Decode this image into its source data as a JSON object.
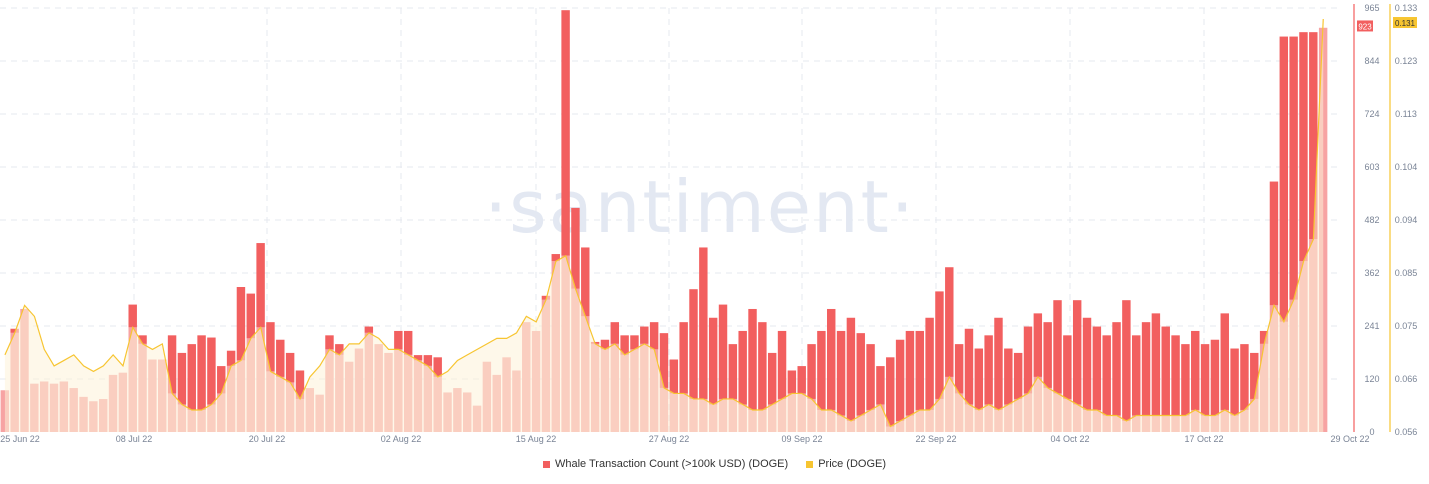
{
  "watermark": "·santiment·",
  "colors": {
    "bars": "#f25f5f",
    "bars_light": "#f7a3a3",
    "price": "#f7c531",
    "price_fill": "#fdf3d8",
    "axis_left": "#f25f5f",
    "axis_right": "#f7c531",
    "grid": "#e6e9ef"
  },
  "legend": [
    {
      "label": "Whale Transaction Count (>100k USD) (DOGE)",
      "color": "#f25f5f"
    },
    {
      "label": "Price (DOGE)",
      "color": "#f7c531"
    }
  ],
  "chart_data": {
    "type": "bar",
    "x_tick_labels": [
      "25 Jun 22",
      "08 Jul 22",
      "20 Jul 22",
      "02 Aug 22",
      "15 Aug 22",
      "27 Aug 22",
      "09 Sep 22",
      "22 Sep 22",
      "04 Oct 22",
      "17 Oct 22",
      "29 Oct 22"
    ],
    "y_left_ticks": [
      "965",
      "844",
      "724",
      "603",
      "482",
      "362",
      "241",
      "120",
      "0"
    ],
    "y_right_ticks": [
      "0.133",
      "0.123",
      "0.113",
      "0.104",
      "0.094",
      "0.085",
      "0.075",
      "0.066",
      "0.056"
    ],
    "y_left_range": [
      0,
      965
    ],
    "y_right_range": [
      0.056,
      0.133
    ],
    "current_labels": {
      "whale": "923",
      "price": "0.131"
    },
    "series": [
      {
        "name": "Whale Transaction Count (>100k USD) (DOGE)",
        "axis": "left",
        "type": "bar",
        "values": [
          95,
          235,
          280,
          110,
          115,
          110,
          115,
          100,
          80,
          70,
          75,
          130,
          135,
          290,
          220,
          165,
          165,
          220,
          180,
          200,
          220,
          215,
          150,
          185,
          330,
          315,
          430,
          250,
          210,
          180,
          140,
          100,
          85,
          220,
          200,
          160,
          190,
          240,
          200,
          180,
          230,
          230,
          175,
          175,
          170,
          90,
          100,
          90,
          60,
          160,
          130,
          170,
          140,
          250,
          230,
          310,
          405,
          960,
          510,
          420,
          205,
          210,
          250,
          220,
          220,
          240,
          250,
          225,
          165,
          250,
          325,
          420,
          260,
          290,
          200,
          230,
          280,
          250,
          180,
          230,
          140,
          150,
          200,
          230,
          280,
          230,
          260,
          225,
          200,
          150,
          170,
          210,
          230,
          230,
          260,
          320,
          375,
          200,
          235,
          190,
          220,
          260,
          190,
          180,
          240,
          270,
          250,
          300,
          220,
          300,
          260,
          240,
          220,
          250,
          300,
          220,
          250,
          270,
          240,
          220,
          200,
          230,
          200,
          210,
          270,
          190,
          200,
          180,
          230,
          570,
          900,
          900,
          910,
          910,
          920,
          923
        ],
        "per_bar_note": "values estimated from axis"
      },
      {
        "name": "Price (DOGE)",
        "axis": "right",
        "type": "line",
        "values": [
          0.07,
          0.074,
          0.079,
          0.077,
          0.071,
          0.068,
          0.069,
          0.07,
          0.068,
          0.067,
          0.068,
          0.07,
          0.068,
          0.075,
          0.072,
          0.071,
          0.072,
          0.063,
          0.061,
          0.06,
          0.06,
          0.061,
          0.063,
          0.068,
          0.069,
          0.073,
          0.075,
          0.067,
          0.066,
          0.065,
          0.062,
          0.066,
          0.068,
          0.071,
          0.07,
          0.072,
          0.072,
          0.074,
          0.073,
          0.071,
          0.071,
          0.07,
          0.069,
          0.068,
          0.066,
          0.067,
          0.069,
          0.07,
          0.071,
          0.072,
          0.073,
          0.073,
          0.074,
          0.077,
          0.076,
          0.08,
          0.087,
          0.088,
          0.082,
          0.077,
          0.072,
          0.071,
          0.072,
          0.07,
          0.071,
          0.072,
          0.071,
          0.064,
          0.063,
          0.063,
          0.062,
          0.062,
          0.061,
          0.062,
          0.062,
          0.061,
          0.06,
          0.06,
          0.061,
          0.062,
          0.063,
          0.063,
          0.062,
          0.06,
          0.06,
          0.059,
          0.058,
          0.059,
          0.06,
          0.061,
          0.057,
          0.058,
          0.059,
          0.06,
          0.06,
          0.062,
          0.066,
          0.063,
          0.061,
          0.06,
          0.061,
          0.06,
          0.061,
          0.062,
          0.063,
          0.066,
          0.064,
          0.063,
          0.062,
          0.061,
          0.06,
          0.06,
          0.059,
          0.059,
          0.058,
          0.059,
          0.059,
          0.059,
          0.059,
          0.059,
          0.059,
          0.06,
          0.059,
          0.059,
          0.06,
          0.059,
          0.06,
          0.062,
          0.072,
          0.079,
          0.076,
          0.08,
          0.087,
          0.091,
          0.131
        ]
      }
    ]
  }
}
